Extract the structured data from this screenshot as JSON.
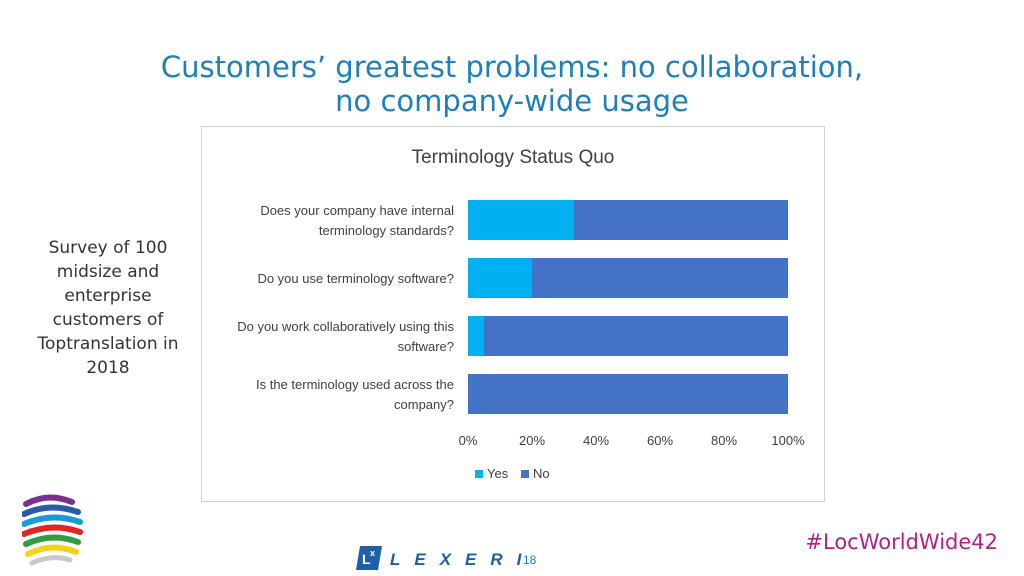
{
  "slide": {
    "title_line1": "Customers’ greatest problems: no collaboration,",
    "title_line2": "no company-wide usage",
    "side_note": "Survey of 100 midsize and enterprise customers of Toptranslation in 2018",
    "hashtag": "#LocWorldWide42",
    "page_number": "18",
    "brand": "LEXERI"
  },
  "colors": {
    "title": "#1f7fb8",
    "yes": "#00b0f0",
    "no": "#4472c4",
    "hashtag": "#b0208c"
  },
  "chart_data": {
    "type": "bar",
    "orientation": "horizontal",
    "stacked": true,
    "percent": true,
    "title": "Terminology Status Quo",
    "categories": [
      [
        "Does your company have internal",
        "terminology standards?"
      ],
      [
        "Do you use terminology software?"
      ],
      [
        "Do you work collaboratively using this",
        "software?"
      ],
      [
        "Is the terminology used across the",
        "company?"
      ]
    ],
    "series": [
      {
        "name": "Yes",
        "values": [
          33,
          20,
          5,
          0
        ]
      },
      {
        "name": "No",
        "values": [
          67,
          80,
          95,
          100
        ]
      }
    ],
    "xlim": [
      0,
      100
    ],
    "xticks": [
      "0%",
      "20%",
      "40%",
      "60%",
      "80%",
      "100%"
    ],
    "grid": false,
    "legend": "bottom"
  }
}
